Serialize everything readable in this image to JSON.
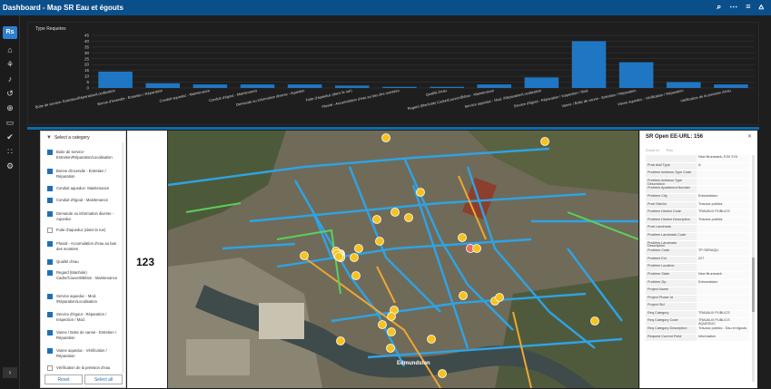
{
  "app": {
    "title": "Dashboard - Map SR Eau et égouts",
    "logo": "Rs"
  },
  "topbar": {
    "icons": [
      "search-icon",
      "more-icon",
      "list-icon",
      "filter-icon"
    ]
  },
  "chart_data": {
    "type": "bar",
    "title": "Type Requetes",
    "categories": [
      "Boite de service- Entretien/Réparation/Localisation",
      "Bonne d'incendie - Entretien / Réparation",
      "Conduit aqueduc - Maintenance",
      "Conduit d'égout - Maintenance",
      "Demande ou information diverse - Aqueduc",
      "Fuite d'aqueduc (dans la rue)",
      "Pluvial - Accumulation d'eau au bas des montées",
      "Qualité d'eau",
      "Regard (Manhole) Cadre/Couvert/Béton - Maintenance",
      "Service aqueduc - Mod. /Réparation/Localisation",
      "Service d'égout - Réparation / Inspection / Mod.",
      "Vanne / Boite de vanne - Entretien / Réparation",
      "Vanne aqueduc - Vérification / Réparation",
      "Vérification de la pression d'eau"
    ],
    "values": [
      14,
      4,
      3,
      3,
      3,
      2,
      1,
      1,
      3,
      9,
      40,
      22,
      5,
      3
    ],
    "ylim": [
      0,
      45
    ],
    "yticks": [
      0,
      5,
      10,
      15,
      20,
      25,
      30,
      35,
      40,
      45
    ],
    "xlabel": "",
    "ylabel": "",
    "color": "#1f77c4"
  },
  "category_panel": {
    "header": "Select a category",
    "items": [
      {
        "label": "Boite de service-Entretien/Réparation/Localisation",
        "checked": true
      },
      {
        "label": "Bonne d'incendie - Entretien / Réparation",
        "checked": true
      },
      {
        "label": "Conduit aqueduc- Maintenance",
        "checked": true
      },
      {
        "label": "Conduit d'égout - Maintenance",
        "checked": true
      },
      {
        "label": "Demande ou information diverse - Aqueduc",
        "checked": true
      },
      {
        "label": "Fuite d'aqueduc (dans la rue)",
        "checked": false
      },
      {
        "label": "Pluvial - Accumulation d'eau au bas des montées",
        "checked": true
      },
      {
        "label": "Qualité d'eau",
        "checked": true
      },
      {
        "label": "Regard (Manhole) Cadre/Couvert/Béton - Maintenance",
        "checked": true
      },
      {
        "label": "Service aqueduc - Mod. /Réparation/Localisation",
        "checked": true
      },
      {
        "label": "Service d'égout - Réparation / Inspection / Mod.",
        "checked": true
      },
      {
        "label": "Vanne / Boite de vanne - Entretien / Réparation",
        "checked": true
      },
      {
        "label": "Vanne aqueduc - Vérification / Réparation",
        "checked": true
      },
      {
        "label": "Vérification de la pression d'eau",
        "checked": false
      }
    ],
    "reset_label": "Reset",
    "select_all_label": "Select all"
  },
  "count_panel": {
    "value": "123"
  },
  "map": {
    "place_label": "Edmundston"
  },
  "detail_panel": {
    "title": "SR Open EE-URL: 156",
    "zoom_label": "Zoom to",
    "pan_label": "Pan",
    "rows": [
      {
        "key": "",
        "value": "New Brunswick, E3V 2V3"
      },
      {
        "key": "Prob Add Type",
        "value": "A"
      },
      {
        "key": "Problem Address Type Code",
        "value": ""
      },
      {
        "key": "Problem Address Type Description",
        "value": ""
      },
      {
        "key": "Problem Apartment Number",
        "value": ""
      },
      {
        "key": "Problem City",
        "value": "Edmundston"
      },
      {
        "key": "Prob District",
        "value": "Travaux publics"
      },
      {
        "key": "Problem District Code",
        "value": "TRAVAUX PUBLICS"
      },
      {
        "key": "Problem District Description",
        "value": "Travaux publics"
      },
      {
        "key": "Prob Landmark",
        "value": ""
      },
      {
        "key": "Problem Landmark Code",
        "value": ""
      },
      {
        "key": "Problem Landmark Description",
        "value": ""
      },
      {
        "key": "Problem Code",
        "value": "TP-SERAQU"
      },
      {
        "key": "Problem Ext",
        "value": "227"
      },
      {
        "key": "Problem Location",
        "value": ""
      },
      {
        "key": "Problem State",
        "value": "New Brunswick"
      },
      {
        "key": "Problem Zip",
        "value": "Edmundston"
      },
      {
        "key": "Project Name",
        "value": ""
      },
      {
        "key": "Project Phase Id",
        "value": ""
      },
      {
        "key": "Project Std",
        "value": ""
      },
      {
        "key": "Req Category",
        "value": "TRAVAUX PUBLICS"
      },
      {
        "key": "Req Category Code",
        "value": "TRAVAUX PUBLICS AQUEDUC"
      },
      {
        "key": "Req Category Description",
        "value": "Travaux publics - Eau et égouts"
      },
      {
        "key": "Request Current Field",
        "value": "Information"
      }
    ]
  }
}
